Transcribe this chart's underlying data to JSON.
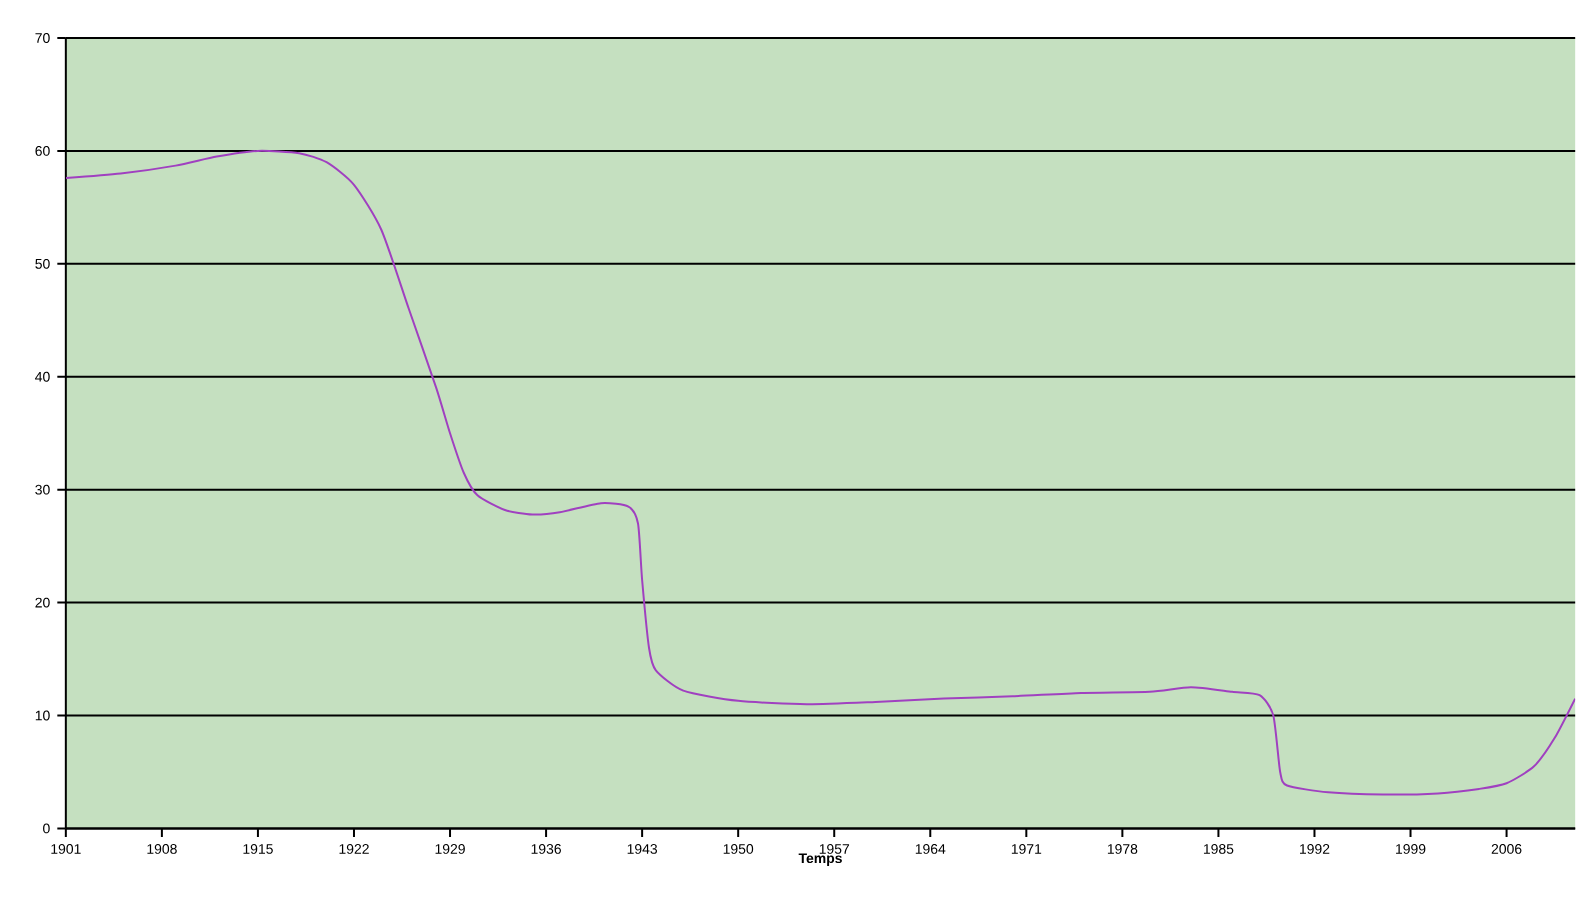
{
  "chart_data": {
    "type": "line",
    "xlabel": "Temps",
    "x": [
      1901,
      1905,
      1909,
      1912,
      1915,
      1918,
      1920,
      1922,
      1924,
      1926,
      1928,
      1929,
      1930,
      1931,
      1933,
      1935,
      1937,
      1940,
      1942,
      1942.7,
      1943,
      1943.5,
      1944,
      1946,
      1950,
      1955,
      1960,
      1965,
      1970,
      1975,
      1980,
      1983,
      1986,
      1988,
      1989,
      1989.5,
      1990,
      1993,
      1997,
      2001,
      2004,
      2006,
      2008,
      2009.5,
      2011
    ],
    "series": [
      {
        "color": "#a040c0",
        "values": [
          57.6,
          58,
          58.7,
          59.5,
          60,
          59.8,
          59,
          57,
          53,
          46,
          39,
          35,
          31.5,
          29.5,
          28.2,
          27.8,
          28,
          28.8,
          28.5,
          27,
          22,
          16,
          14,
          12.2,
          11.3,
          11,
          11.2,
          11.5,
          11.7,
          12,
          12.1,
          12.5,
          12.1,
          11.8,
          10,
          5,
          3.8,
          3.2,
          3,
          3.1,
          3.5,
          4,
          5.5,
          8,
          11.5
        ]
      }
    ],
    "xlim": [
      1901,
      2011
    ],
    "ylim": [
      0,
      70
    ],
    "xticks": [
      1901,
      1908,
      1915,
      1922,
      1929,
      1936,
      1943,
      1950,
      1957,
      1964,
      1971,
      1978,
      1985,
      1992,
      1999,
      2006
    ],
    "yticks": [
      0,
      10,
      20,
      30,
      40,
      50,
      60,
      70
    ],
    "grid": "y",
    "marker": "none",
    "line_style": "solid"
  }
}
